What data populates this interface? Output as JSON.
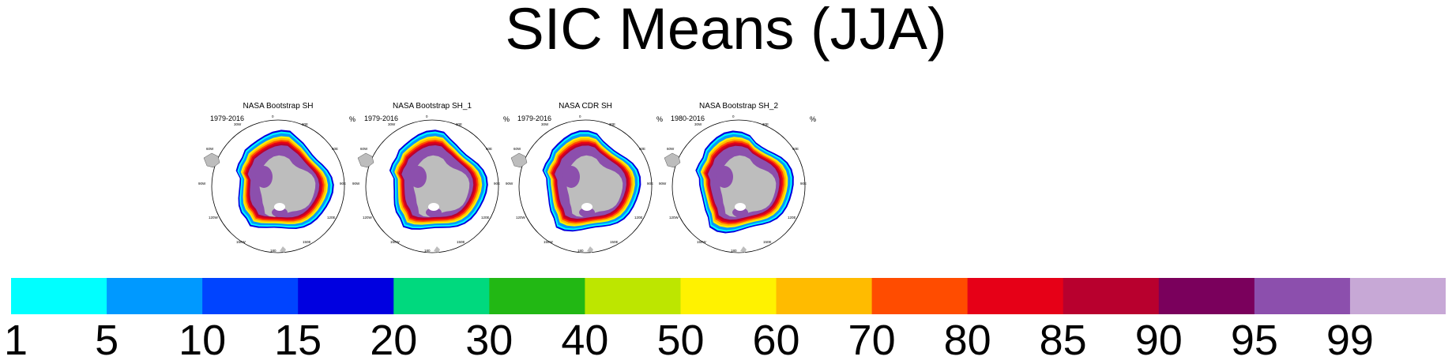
{
  "title": "SIC Means (JJA)",
  "panels": [
    {
      "title": "NASA Bootstrap SH",
      "period": "1979-2016",
      "unit": "%"
    },
    {
      "title": "NASA Bootstrap SH_1",
      "period": "1979-2016",
      "unit": "%"
    },
    {
      "title": "NASA CDR SH",
      "period": "1979-2016",
      "unit": "%"
    },
    {
      "title": "NASA Bootstrap SH_2",
      "period": "1980-2016",
      "unit": "%"
    }
  ],
  "map_labels": {
    "lon_0": "0",
    "lon_30e": "30E",
    "lon_60e": "60E",
    "lon_90e": "90E",
    "lon_120e": "120E",
    "lon_150e": "150E",
    "lon_180": "180",
    "lon_150w": "150W",
    "lon_120w": "120W",
    "lon_90w": "90W",
    "lon_60w": "60W",
    "lon_30w": "30W"
  },
  "colorbar": {
    "tick_labels": [
      "1",
      "5",
      "10",
      "15",
      "20",
      "30",
      "40",
      "50",
      "60",
      "70",
      "80",
      "85",
      "90",
      "95",
      "99"
    ],
    "colors": [
      "#00ffff",
      "#0099ff",
      "#0044ff",
      "#0000e0",
      "#00d97e",
      "#22b814",
      "#bde600",
      "#fff200",
      "#ffbb00",
      "#ff4c00",
      "#e60017",
      "#b8002e",
      "#7a005c",
      "#8c4fad",
      "#c7a8d6"
    ]
  },
  "chart_data": {
    "type": "heatmap",
    "title": "SIC Means (JJA)",
    "unit": "%",
    "levels": [
      1,
      5,
      10,
      15,
      20,
      30,
      40,
      50,
      60,
      70,
      80,
      85,
      90,
      95,
      99
    ],
    "colors": [
      "#00ffff",
      "#0099ff",
      "#0044ff",
      "#0000e0",
      "#00d97e",
      "#22b814",
      "#bde600",
      "#fff200",
      "#ffbb00",
      "#ff4c00",
      "#e60017",
      "#b8002e",
      "#7a005c",
      "#8c4fad",
      "#c7a8d6"
    ],
    "panels": [
      {
        "name": "NASA Bootstrap SH",
        "period": "1979-2016"
      },
      {
        "name": "NASA Bootstrap SH_1",
        "period": "1979-2016"
      },
      {
        "name": "NASA CDR SH",
        "period": "1979-2016"
      },
      {
        "name": "NASA Bootstrap SH_2",
        "period": "1980-2016"
      }
    ]
  }
}
